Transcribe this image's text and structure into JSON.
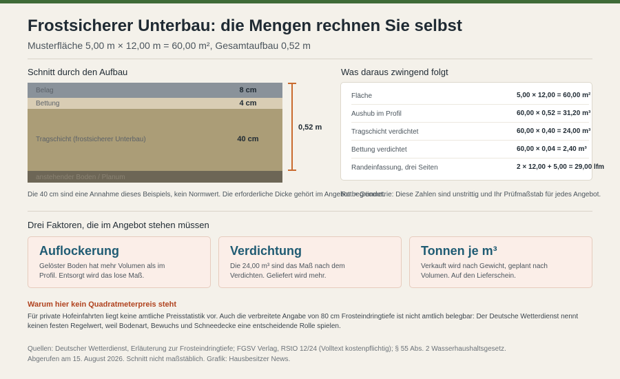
{
  "header": {
    "title": "Frostsicherer Unterbau: die Mengen rechnen Sie selbst",
    "subtitle": "Musterfläche 5,00 m × 12,00 m = 60,00 m², Gesamtaufbau 0,52 m"
  },
  "section": {
    "left_heading": "Schnitt durch den Aufbau",
    "right_heading": "Was daraus zwingend folgt"
  },
  "layers": [
    {
      "name": "Belag",
      "thickness": "8 cm",
      "color": "#8a929a"
    },
    {
      "name": "Bettung",
      "thickness": "4 cm",
      "color": "#d9cdb4"
    },
    {
      "name": "Tragschicht (frostsicherer Unterbau)",
      "thickness": "40 cm",
      "color": "#ab9d77"
    },
    {
      "name": "anstehender Boden / Planum",
      "thickness": "",
      "color": "#6d6656"
    }
  ],
  "total_depth": "0,52 m",
  "calc": [
    {
      "label": "Fläche",
      "value": "5,00 × 12,00 = 60,00 m²"
    },
    {
      "label": "Aushub im Profil",
      "value": "60,00 × 0,52 = 31,20 m³"
    },
    {
      "label": "Tragschicht verdichtet",
      "value": "60,00 × 0,40 = 24,00 m³"
    },
    {
      "label": "Bettung verdichtet",
      "value": "60,00 × 0,04 = 2,40 m³"
    },
    {
      "label": "Randeinfassung, drei Seiten",
      "value": "2 × 12,00 + 5,00 = 29,00 lfm"
    }
  ],
  "notes": {
    "left": "Die 40 cm sind eine Annahme dieses Beispiels, kein Normwert. Die erforderliche Dicke gehört im Angebot begründet.",
    "right": "Rot = Geometrie: Diese Zahlen sind unstrittig und Ihr Prüfmaßstab für jedes Angebot."
  },
  "factors_heading": "Drei Faktoren, die im Angebot stehen müssen",
  "factors": [
    {
      "title": "Auflockerung",
      "text": "Gelöster Boden hat mehr Volumen als im Profil. Entsorgt wird das lose Maß."
    },
    {
      "title": "Verdichtung",
      "text": "Die 24,00 m³ sind das Maß nach dem Verdichten. Geliefert wird mehr."
    },
    {
      "title": "Tonnen je m³",
      "text": "Verkauft wird nach Gewicht, geplant nach Volumen. Auf den Lieferschein."
    }
  ],
  "warning": {
    "heading": "Warum hier kein Quadratmeterpreis steht",
    "text": "Für private Hofeinfahrten liegt keine amtliche Preisstatistik vor. Auch die verbreitete Angabe von 80 cm Frosteindringtiefe ist nicht amtlich belegbar: Der Deutsche Wetterdienst nennt keinen festen Regelwert, weil Bodenart, Bewuchs und Schneedecke eine entscheidende Rolle spielen."
  },
  "sources": {
    "line1": "Quellen: Deutscher Wetterdienst, Erläuterung zur Frosteindringtiefe; FGSV Verlag, RStO 12/24 (Volltext kostenpflichtig); § 55 Abs. 2 Wasserhaushaltsgesetz.",
    "line2": "Abgerufen am 15. August 2026. Schnitt nicht maßstäblich. Grafik: Hausbesitzer News."
  },
  "colors": {
    "accent": "#3f6b38",
    "dimension": "#c96a2e",
    "card_title": "#1f5b73",
    "warning": "#b0431f"
  }
}
